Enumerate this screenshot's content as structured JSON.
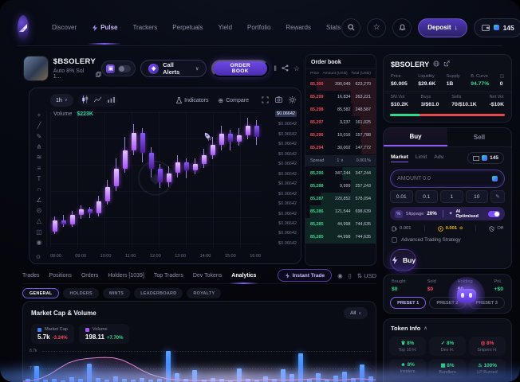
{
  "colors": {
    "accent": "#8b5cf6",
    "green": "#2fd98c",
    "red": "#f6465d",
    "blue": "#2e86ff",
    "pink": "#e87fd0",
    "yellow": "#f0b90b"
  },
  "nav": {
    "items": [
      {
        "label": "Discover"
      },
      {
        "label": "Pulse"
      },
      {
        "label": "Trackers"
      },
      {
        "label": "Perpetuals"
      },
      {
        "label": "Yield"
      },
      {
        "label": "Portfolio"
      },
      {
        "label": "Rewards"
      },
      {
        "label": "Stats"
      }
    ],
    "deposit_label": "Deposit",
    "counter": "145"
  },
  "token_header": {
    "symbol": "$BSOLERY",
    "subtitle": "Auto 8% Sol 1...",
    "call_alerts_label": "Call Alerts",
    "order_book_button": "ORDER BOOK"
  },
  "chart": {
    "timeframe": "1h",
    "volume_label": "Volume",
    "volume_value": "$223K",
    "indicators_label": "Indicators",
    "compare_label": "Compare",
    "price_ticks": [
      "$0.06642",
      "$0.06642",
      "$0.06642",
      "$0.06642",
      "$0.06642",
      "$0.06642",
      "$0.06642",
      "$0.06642",
      "$0.06642",
      "$0.06642",
      "$0.06642",
      "$0.06642",
      "$0.06642",
      "$0.06642"
    ],
    "tools": [
      {
        "name": "crosshair",
        "glyph": "+"
      },
      {
        "name": "trendline",
        "glyph": "╱"
      },
      {
        "name": "pencil",
        "glyph": "✎"
      },
      {
        "name": "pitchfork",
        "glyph": "⋔"
      },
      {
        "name": "pattern",
        "glyph": "≋"
      },
      {
        "name": "fib-levels",
        "glyph": "≡"
      },
      {
        "name": "text-tool",
        "glyph": "T"
      },
      {
        "name": "arc-tool",
        "glyph": "∩"
      },
      {
        "name": "measure",
        "glyph": "∠"
      },
      {
        "name": "zoom-tool",
        "glyph": "⊙"
      },
      {
        "name": "shapes",
        "glyph": "△"
      },
      {
        "name": "lock",
        "glyph": "◫"
      },
      {
        "name": "visibility",
        "glyph": "◉"
      }
    ]
  },
  "chart_data": [
    {
      "type": "candlestick",
      "title": "$BSOLERY 1h price chart",
      "x_ticks": [
        "08:00",
        "09:00",
        "10:00",
        "11:00",
        "12:00",
        "13:00",
        "14:00",
        "15:00",
        "16:00"
      ],
      "y_tick_label": "$0.06642",
      "y_note": "every visible y-axis tick reads $0.06642",
      "scale": "normalized 0-100 of plot height",
      "candles": [
        {
          "o": 12,
          "h": 23,
          "l": 10,
          "c": 20
        },
        {
          "o": 20,
          "h": 24,
          "l": 15,
          "c": 17
        },
        {
          "o": 17,
          "h": 27,
          "l": 15,
          "c": 24
        },
        {
          "o": 24,
          "h": 31,
          "l": 21,
          "c": 28
        },
        {
          "o": 28,
          "h": 30,
          "l": 22,
          "c": 25
        },
        {
          "o": 25,
          "h": 38,
          "l": 23,
          "c": 34
        },
        {
          "o": 34,
          "h": 50,
          "l": 32,
          "c": 45
        },
        {
          "o": 45,
          "h": 66,
          "l": 42,
          "c": 58
        },
        {
          "o": 58,
          "h": 82,
          "l": 55,
          "c": 72
        },
        {
          "o": 72,
          "h": 91,
          "l": 68,
          "c": 85
        },
        {
          "o": 85,
          "h": 88,
          "l": 63,
          "c": 70
        },
        {
          "o": 70,
          "h": 74,
          "l": 52,
          "c": 58
        },
        {
          "o": 58,
          "h": 62,
          "l": 44,
          "c": 48
        },
        {
          "o": 48,
          "h": 60,
          "l": 45,
          "c": 55
        },
        {
          "o": 55,
          "h": 68,
          "l": 52,
          "c": 63
        },
        {
          "o": 63,
          "h": 66,
          "l": 51,
          "c": 57
        },
        {
          "o": 57,
          "h": 66,
          "l": 54,
          "c": 62
        },
        {
          "o": 62,
          "h": 73,
          "l": 59,
          "c": 68
        },
        {
          "o": 68,
          "h": 82,
          "l": 65,
          "c": 76
        },
        {
          "o": 76,
          "h": 90,
          "l": 72,
          "c": 84
        },
        {
          "o": 84,
          "h": 87,
          "l": 72,
          "c": 78
        },
        {
          "o": 78,
          "h": 88,
          "l": 75,
          "c": 83
        },
        {
          "o": 83,
          "h": 96,
          "l": 80,
          "c": 90
        },
        {
          "o": 90,
          "h": 94,
          "l": 76,
          "c": 82
        }
      ]
    },
    {
      "type": "bar+line",
      "title": "Market Cap & Volume",
      "y_ticks": [
        "8.7k",
        "7.5k"
      ],
      "scale": "normalized 0-100 of mini-chart height",
      "series": [
        {
          "name": "Volume",
          "type": "bar",
          "color": "#2e86ff",
          "values": [
            8,
            46,
            6,
            10,
            5,
            14,
            8,
            52,
            12,
            6,
            16,
            10,
            7,
            12,
            6,
            8,
            88,
            26,
            10,
            34,
            6,
            12,
            8,
            5,
            38,
            10,
            6,
            15,
            8,
            36,
            22,
            82,
            10,
            26,
            6,
            18,
            30,
            12,
            50,
            16
          ]
        },
        {
          "name": "Market Cap",
          "type": "line",
          "color": "#e87fd0",
          "values": [
            2,
            4,
            10,
            22,
            38,
            52,
            60,
            64,
            66,
            67,
            66,
            60,
            48,
            34,
            22,
            14,
            9,
            6,
            5,
            4,
            4,
            5,
            4,
            4,
            5,
            6,
            5,
            7,
            6,
            5,
            6,
            7,
            9,
            8,
            6,
            5,
            7,
            9,
            8,
            6
          ]
        }
      ]
    }
  ],
  "order_book": {
    "title": "Order book",
    "columns": [
      "Price",
      "Amount (USD)",
      "Total (USD)"
    ],
    "asks": [
      {
        "price": "85,300",
        "amount": "390,049",
        "total": "623,270",
        "depth": 84
      },
      {
        "price": "85,299",
        "amount": "16,834",
        "total": "263,221",
        "depth": 35
      },
      {
        "price": "85,298",
        "amount": "85,582",
        "total": "248,587",
        "depth": 33
      },
      {
        "price": "85,297",
        "amount": "3,237",
        "total": "161,025",
        "depth": 22
      },
      {
        "price": "85,296",
        "amount": "10,016",
        "total": "157,788",
        "depth": 21
      },
      {
        "price": "85,294",
        "amount": "30,002",
        "total": "147,772",
        "depth": 20
      }
    ],
    "spread": {
      "label": "Spread",
      "value": "1",
      "percent": "0.001%"
    },
    "bids": [
      {
        "price": "85,290",
        "amount": "347,244",
        "total": "347,244",
        "depth": 47
      },
      {
        "price": "85,288",
        "amount": "9,999",
        "total": "257,243",
        "depth": 35
      },
      {
        "price": "85,287",
        "amount": "220,852",
        "total": "578,094",
        "depth": 78
      },
      {
        "price": "85,286",
        "amount": "121,544",
        "total": "698,639",
        "depth": 94
      },
      {
        "price": "85,285",
        "amount": "44,998",
        "total": "744,635",
        "depth": 100
      },
      {
        "price": "85,285",
        "amount": "44,998",
        "total": "744,635",
        "depth": 100
      }
    ]
  },
  "token_stats": {
    "symbol": "$BSOLERY",
    "row1": [
      {
        "label": "Price",
        "value": "$0.005"
      },
      {
        "label": "Liquidity",
        "value": "$29.6K"
      },
      {
        "label": "Supply",
        "value": "1B"
      },
      {
        "label": "B. Curve",
        "value": "94.77%"
      }
    ],
    "watch_count": "0",
    "row2": [
      {
        "label": "5M Vol",
        "value": "$10.2K"
      },
      {
        "label": "Buys",
        "value": "3/$61.0"
      },
      {
        "label": "Sells",
        "value": "70/$10.1K"
      },
      {
        "label": "Net Vol",
        "value": "-$10K"
      }
    ]
  },
  "trade_panel": {
    "buy_tab": "Buy",
    "sell_tab": "Sell",
    "order_types": [
      "Market",
      "Limit",
      "Adv."
    ],
    "counter": "145",
    "amount_placeholder": "AMOUNT 0.0",
    "amount_presets": [
      "0.01",
      "0.1",
      "1",
      "10"
    ],
    "slippage_label": "Slippage",
    "slippage_value": "20%",
    "ai_label": "AI Optimised",
    "gas_value": "0.001",
    "priority_value": "0.001",
    "mev_label": "Off",
    "advanced_label": "Advanced Trading Strategy",
    "buy_button": "Buy",
    "stats": [
      {
        "label": "Bought",
        "value": "$0"
      },
      {
        "label": "Sold",
        "value": "$0"
      },
      {
        "label": "Holding",
        "value": "$0"
      },
      {
        "label": "PnL",
        "value": "+$0"
      }
    ],
    "presets": [
      "PRESET 1",
      "PRESET 2",
      "PRESET 3"
    ]
  },
  "token_info": {
    "title": "Token Info",
    "items": [
      {
        "value": "8%",
        "label": "Top 10 H."
      },
      {
        "value": "8%",
        "label": "Dev H."
      },
      {
        "value": "8%",
        "label": "Snipers H."
      },
      {
        "value": "8%",
        "label": "Insiders"
      },
      {
        "value": "8%",
        "label": "Bundlers"
      },
      {
        "value": "100%",
        "label": "LP Burned"
      }
    ]
  },
  "bottom": {
    "tabs": [
      {
        "label": "Trades"
      },
      {
        "label": "Positions"
      },
      {
        "label": "Orders"
      },
      {
        "label": "Holders [1039]"
      },
      {
        "label": "Top Traders"
      },
      {
        "label": "Dev Tokens"
      },
      {
        "label": "Analytics"
      }
    ],
    "instant_trade": "Instant Trade",
    "currency": "USD",
    "subtabs": [
      "GENERAL",
      "HOLDERS",
      "MINTS",
      "LEADERBOARD",
      "ROYALTY"
    ],
    "section_title": "Market Cap & Volume",
    "range": "All",
    "legend": [
      {
        "name": "Market Cap",
        "value": "5.7k",
        "change": "-3.24%",
        "color": "#3b82f6"
      },
      {
        "name": "Volume",
        "value": "198.11",
        "change": "+7.70%",
        "color": "#a855f7"
      }
    ]
  }
}
